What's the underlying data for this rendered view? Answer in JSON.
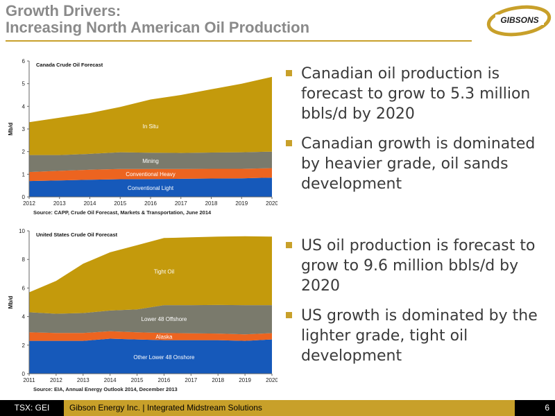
{
  "title": {
    "line1": "Growth Drivers:",
    "line2": "Increasing North American Oil Production"
  },
  "logo": {
    "text": "GIBSONS"
  },
  "colors": {
    "accent": "#c8a02a",
    "in_situ": "#c49a0c",
    "mining": "#7a7a6c",
    "conv_heavy": "#ec6420",
    "conv_light": "#1659ba"
  },
  "bullets_top": [
    "Canadian oil production is forecast to grow to 5.3 million bbls/d by 2020",
    "Canadian growth is dominated by heavier grade, oil sands development"
  ],
  "bullets_bottom": [
    "US oil production is forecast to grow to 9.6 million bbls/d by 2020",
    "US growth is dominated by the lighter grade, tight oil development"
  ],
  "footer": {
    "ticker": "TSX: GEI",
    "text": "Gibson Energy Inc.  |  Integrated Midstream Solutions",
    "page": "6"
  },
  "chart_data": [
    {
      "type": "area",
      "stacked": true,
      "title": "Canada Crude Oil Forecast",
      "ylabel": "Mb/d",
      "source": "Source: CAPP, Crude Oil Forecast, Markets & Transportation, June 2014",
      "x": [
        2012,
        2013,
        2014,
        2015,
        2016,
        2017,
        2018,
        2019,
        2020
      ],
      "ylim": [
        0,
        6
      ],
      "yticks": [
        0,
        1,
        2,
        3,
        4,
        5,
        6
      ],
      "series": [
        {
          "name": "Conventional Light",
          "values": [
            0.7,
            0.73,
            0.76,
            0.78,
            0.79,
            0.8,
            0.81,
            0.82,
            0.85
          ]
        },
        {
          "name": "Conventional Heavy",
          "values": [
            0.4,
            0.42,
            0.44,
            0.45,
            0.44,
            0.43,
            0.43,
            0.42,
            0.42
          ]
        },
        {
          "name": "Mining",
          "values": [
            0.75,
            0.7,
            0.7,
            0.74,
            0.72,
            0.71,
            0.72,
            0.73,
            0.73
          ]
        },
        {
          "name": "In Situ",
          "values": [
            1.45,
            1.65,
            1.8,
            2.0,
            2.35,
            2.56,
            2.79,
            3.03,
            3.3
          ]
        }
      ]
    },
    {
      "type": "area",
      "stacked": true,
      "title": "United States Crude Oil Forecast",
      "ylabel": "Mb/d",
      "source": "Source: EIA, Annual Energy Outlook 2014, December 2013",
      "x": [
        2011,
        2012,
        2013,
        2014,
        2015,
        2016,
        2017,
        2018,
        2019,
        2020
      ],
      "ylim": [
        0,
        10
      ],
      "yticks": [
        0,
        2,
        4,
        6,
        8,
        10
      ],
      "series": [
        {
          "name": "Other Lower 48 Onshore",
          "values": [
            2.3,
            2.3,
            2.3,
            2.45,
            2.4,
            2.35,
            2.35,
            2.35,
            2.3,
            2.4
          ]
        },
        {
          "name": "Alaska",
          "values": [
            0.6,
            0.55,
            0.55,
            0.52,
            0.5,
            0.5,
            0.48,
            0.46,
            0.45,
            0.44
          ]
        },
        {
          "name": "Lower 48 Offshore",
          "values": [
            1.4,
            1.35,
            1.4,
            1.45,
            1.6,
            1.95,
            1.97,
            2.0,
            2.05,
            1.96
          ]
        },
        {
          "name": "Tight Oil",
          "values": [
            1.4,
            2.3,
            3.45,
            4.08,
            4.5,
            4.7,
            4.75,
            4.79,
            4.82,
            4.8
          ]
        }
      ]
    }
  ]
}
